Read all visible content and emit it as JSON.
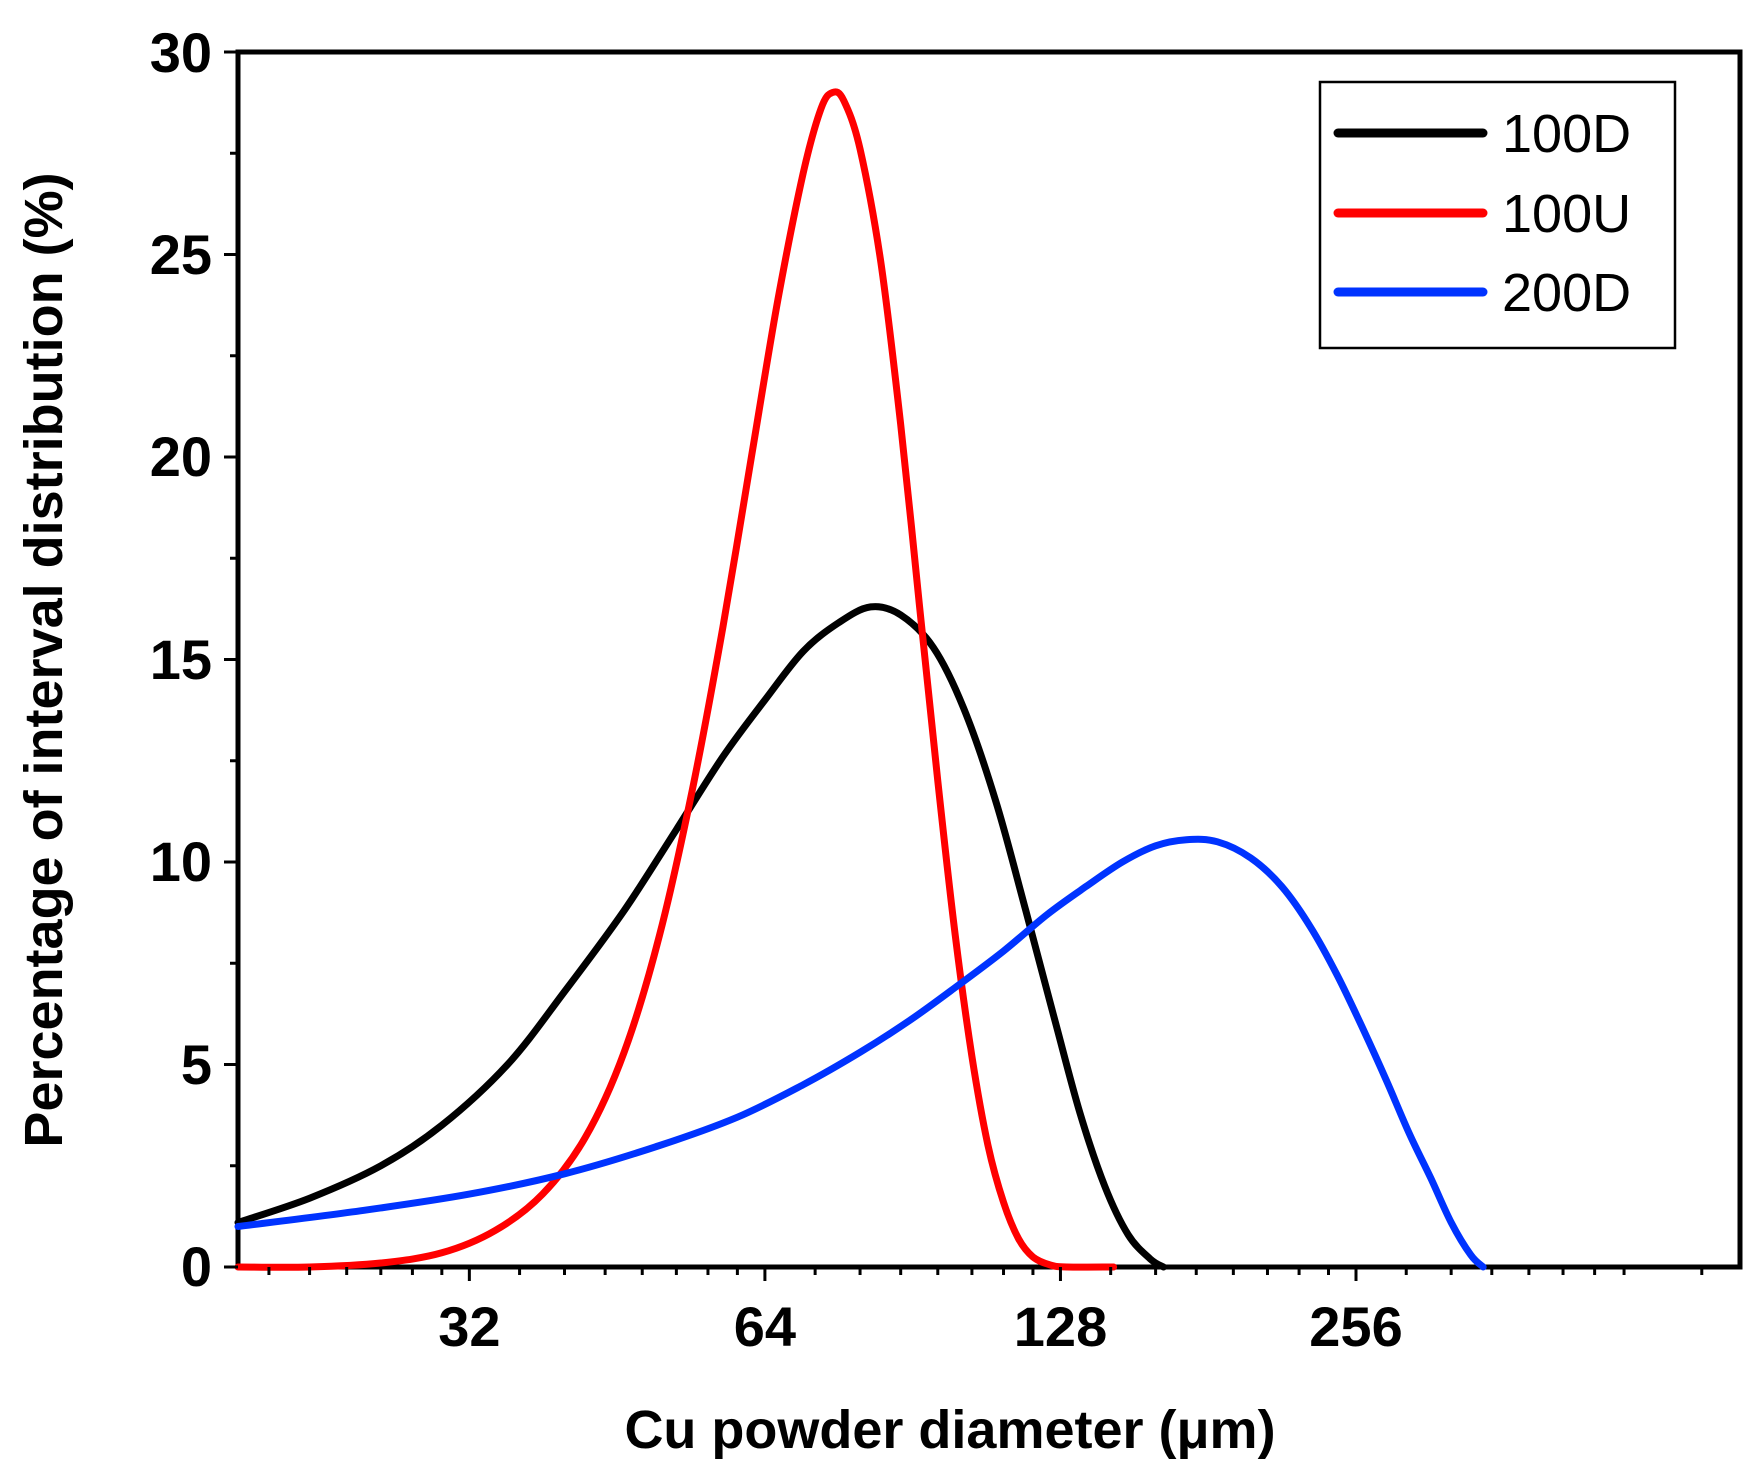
{
  "chart_data": {
    "type": "line",
    "title": "",
    "xlabel": "Cu powder diameter (μm)",
    "ylabel": "Percentage of interval distribution (%)",
    "xscale": "log2",
    "xlim": [
      18.6,
      630
    ],
    "ylim": [
      0,
      30
    ],
    "xticks": [
      32,
      64,
      128,
      256
    ],
    "xtick_labels": [
      "32",
      "64",
      "128",
      "256"
    ],
    "yticks": [
      0,
      5,
      10,
      15,
      20,
      25,
      30
    ],
    "ytick_labels": [
      "0",
      "5",
      "10",
      "15",
      "20",
      "25",
      "30"
    ],
    "grid": false,
    "legend": {
      "position": "top-right"
    },
    "series": [
      {
        "name": "100D",
        "color": "#000000",
        "points": [
          [
            18.6,
            1.1
          ],
          [
            22,
            1.7
          ],
          [
            26,
            2.5
          ],
          [
            30,
            3.5
          ],
          [
            35,
            5.0
          ],
          [
            40,
            6.8
          ],
          [
            46,
            8.8
          ],
          [
            52,
            10.8
          ],
          [
            58,
            12.6
          ],
          [
            64,
            14.0
          ],
          [
            70,
            15.2
          ],
          [
            76,
            15.9
          ],
          [
            82,
            16.3
          ],
          [
            88,
            16.1
          ],
          [
            95,
            15.3
          ],
          [
            102,
            13.8
          ],
          [
            110,
            11.5
          ],
          [
            118,
            8.8
          ],
          [
            126,
            6.2
          ],
          [
            134,
            3.8
          ],
          [
            142,
            2.0
          ],
          [
            150,
            0.8
          ],
          [
            158,
            0.2
          ],
          [
            163,
            0.0
          ]
        ]
      },
      {
        "name": "100U",
        "color": "#ff0000",
        "points": [
          [
            18.6,
            0.0
          ],
          [
            22,
            0.0
          ],
          [
            26,
            0.1
          ],
          [
            30,
            0.35
          ],
          [
            34,
            0.9
          ],
          [
            38,
            1.8
          ],
          [
            42,
            3.2
          ],
          [
            46,
            5.3
          ],
          [
            50,
            8.2
          ],
          [
            54,
            11.8
          ],
          [
            58,
            15.8
          ],
          [
            62,
            20.0
          ],
          [
            66,
            23.9
          ],
          [
            70,
            27.0
          ],
          [
            73,
            28.6
          ],
          [
            75,
            29.0
          ],
          [
            77,
            28.8
          ],
          [
            80,
            27.6
          ],
          [
            84,
            24.8
          ],
          [
            88,
            20.8
          ],
          [
            92,
            16.3
          ],
          [
            96,
            12.0
          ],
          [
            100,
            8.2
          ],
          [
            104,
            5.2
          ],
          [
            108,
            3.0
          ],
          [
            112,
            1.6
          ],
          [
            116,
            0.7
          ],
          [
            120,
            0.25
          ],
          [
            125,
            0.05
          ],
          [
            130,
            0.0
          ],
          [
            145,
            0.0
          ]
        ]
      },
      {
        "name": "200D",
        "color": "#0033ff",
        "points": [
          [
            18.6,
            1.0
          ],
          [
            25,
            1.4
          ],
          [
            32,
            1.8
          ],
          [
            40,
            2.3
          ],
          [
            50,
            3.0
          ],
          [
            60,
            3.7
          ],
          [
            70,
            4.5
          ],
          [
            80,
            5.3
          ],
          [
            90,
            6.1
          ],
          [
            100,
            6.9
          ],
          [
            112,
            7.8
          ],
          [
            124,
            8.7
          ],
          [
            136,
            9.4
          ],
          [
            148,
            10.0
          ],
          [
            160,
            10.4
          ],
          [
            172,
            10.55
          ],
          [
            185,
            10.5
          ],
          [
            200,
            10.1
          ],
          [
            215,
            9.4
          ],
          [
            230,
            8.4
          ],
          [
            245,
            7.2
          ],
          [
            260,
            5.9
          ],
          [
            275,
            4.6
          ],
          [
            290,
            3.3
          ],
          [
            305,
            2.2
          ],
          [
            320,
            1.1
          ],
          [
            335,
            0.3
          ],
          [
            345,
            0.0
          ]
        ]
      }
    ]
  }
}
